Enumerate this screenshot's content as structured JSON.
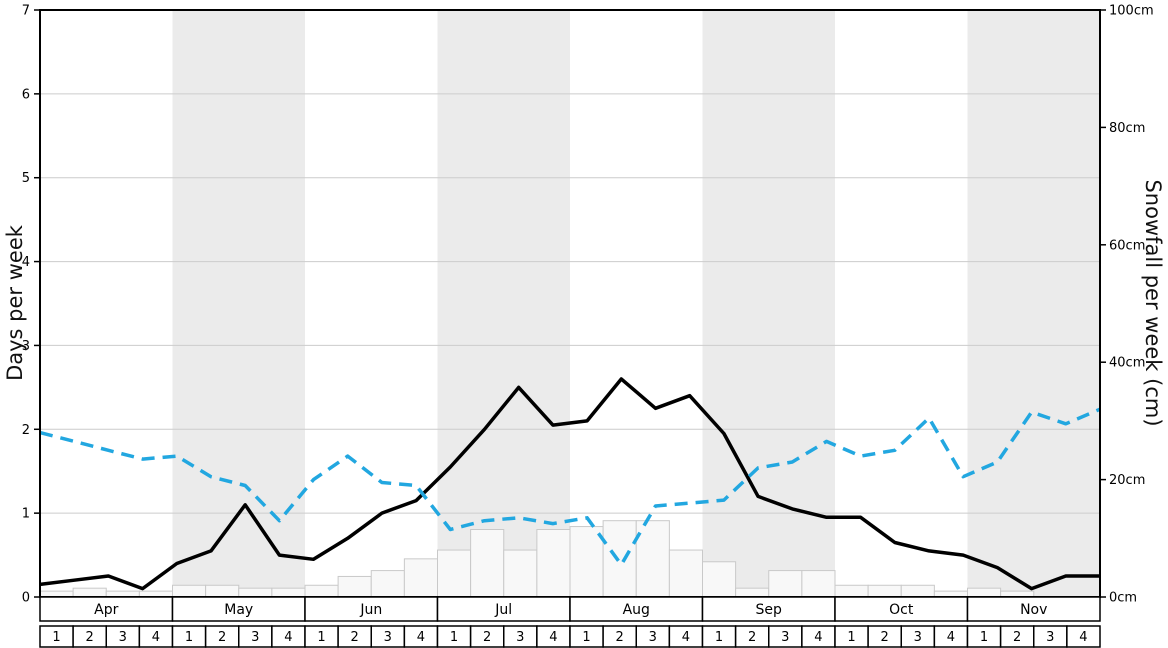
{
  "chart_data": {
    "type": "line",
    "title": "",
    "ylabel_left": "Days per week",
    "ylabel_right": "Snowfall per week (cm)",
    "months": [
      "Apr",
      "May",
      "Jun",
      "Jul",
      "Aug",
      "Sep",
      "Oct",
      "Nov"
    ],
    "weeks": [
      "1",
      "2",
      "3",
      "4"
    ],
    "left_axis_ticks": [
      "0",
      "1",
      "2",
      "3",
      "4",
      "5",
      "6",
      "7"
    ],
    "right_axis_ticks": [
      "0cm",
      "20cm",
      "40cm",
      "60cm",
      "80cm",
      "100cm"
    ],
    "left_ylim": [
      0,
      7
    ],
    "right_ylim": [
      0,
      100
    ],
    "grid_on": true,
    "banded_months": [
      "May",
      "Jul",
      "Sep",
      "Nov"
    ],
    "colors": {
      "band": "#ebebeb",
      "grid": "#cccccc",
      "axis": "#000000",
      "days_line": "#000000",
      "snow_line": "#22a7e0",
      "bar_fill": "#f8f8f8",
      "bar_border": "#c9c9c9",
      "row_fill": "#ffffff"
    },
    "series": [
      {
        "name": "snowfall-days",
        "label": "Days per week",
        "type": "line",
        "style": "solid",
        "axis": "left",
        "color": "#000000",
        "values": [
          0.15,
          0.2,
          0.25,
          0.1,
          0.4,
          0.55,
          1.1,
          0.5,
          0.45,
          0.7,
          1.0,
          1.15,
          1.55,
          2.0,
          2.5,
          2.05,
          2.1,
          2.6,
          2.25,
          2.4,
          1.95,
          1.2,
          1.05,
          0.95,
          0.95,
          0.65,
          0.55,
          0.5,
          0.35,
          0.1,
          0.25,
          0.25
        ]
      },
      {
        "name": "snowfall-amount",
        "label": "Snowfall per week (cm)",
        "type": "line",
        "style": "dashed",
        "axis": "right",
        "color": "#22a7e0",
        "values": [
          28,
          26.5,
          25,
          23.5,
          24,
          20.5,
          19,
          13,
          20,
          24,
          19.5,
          19,
          11.5,
          13,
          13.5,
          12.5,
          13.5,
          5.5,
          15.5,
          16,
          16.5,
          22,
          23,
          26.5,
          24,
          25,
          30.5,
          20.5,
          23,
          31.5,
          29.5,
          32
        ]
      },
      {
        "name": "snowfall-bars",
        "label": "Snowfall per week (cm)",
        "type": "bar",
        "axis": "right",
        "color": "#f8f8f8",
        "border": "#c9c9c9",
        "values": [
          1,
          1.5,
          1,
          1,
          2,
          2,
          1.5,
          1.5,
          2,
          3.5,
          4.5,
          6.5,
          8,
          11.5,
          8,
          11.5,
          12,
          13,
          13,
          8,
          6,
          1.5,
          4.5,
          4.5,
          2,
          2,
          2,
          1,
          1.5,
          1,
          0,
          0
        ]
      }
    ]
  }
}
